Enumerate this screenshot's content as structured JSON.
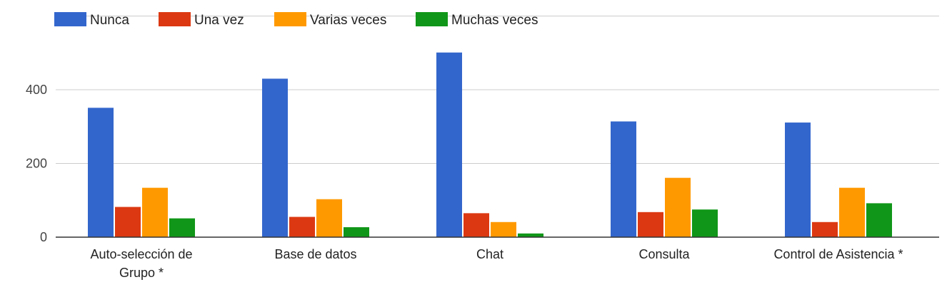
{
  "chart_data": {
    "type": "bar",
    "title": "",
    "xlabel": "",
    "ylabel": "",
    "categories": [
      [
        "Auto-selección de",
        "Grupo *"
      ],
      [
        "Base de datos"
      ],
      [
        "Chat"
      ],
      [
        "Consulta"
      ],
      [
        "Control de Asistencia *"
      ]
    ],
    "series": [
      {
        "name": "Nunca",
        "color": "#3366cc",
        "values": [
          351,
          430,
          501,
          314,
          311
        ]
      },
      {
        "name": "Una vez",
        "color": "#dc3912",
        "values": [
          82,
          55,
          65,
          68,
          41
        ]
      },
      {
        "name": "Varias veces",
        "color": "#ff9900",
        "values": [
          134,
          103,
          41,
          161,
          134
        ]
      },
      {
        "name": "Muchas veces",
        "color": "#109618",
        "values": [
          51,
          27,
          10,
          75,
          92
        ]
      }
    ],
    "yticks": [
      0,
      200,
      400
    ],
    "ylim": [
      0,
      600
    ],
    "grid": true,
    "legend_position": "top-left"
  }
}
